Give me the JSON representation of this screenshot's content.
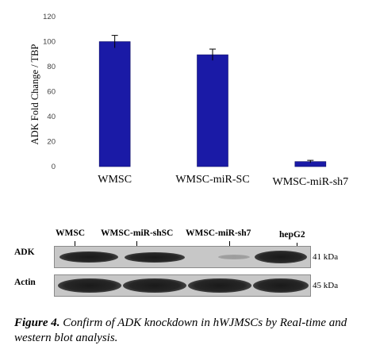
{
  "chart_data": {
    "type": "bar",
    "categories": [
      "WMSC",
      "WMSC-miR-SC",
      "WMSC-miR-sh7"
    ],
    "values": [
      100,
      89.5,
      4
    ],
    "error_bars": [
      5,
      4.5,
      1
    ],
    "ylabel": "ADK Fold Change / TBP",
    "ylim": [
      0,
      120
    ],
    "yticks": [
      "0",
      "20",
      "40",
      "60",
      "80",
      "100",
      "120"
    ],
    "grid": false,
    "bar_color": "#1a1aa6"
  },
  "blot": {
    "lanes": [
      "WMSC",
      "WMSC-miR-shSC",
      "WMSC-miR-sh7",
      "hepG2"
    ],
    "rows": [
      {
        "label": "ADK",
        "size": "41 kDa"
      },
      {
        "label": "Actin",
        "size": "45 kDa"
      }
    ]
  },
  "caption": {
    "label": "Figure 4.",
    "text": "Confirm of ADK knockdown in hWJMSCs by Real-time and western blot analysis."
  }
}
